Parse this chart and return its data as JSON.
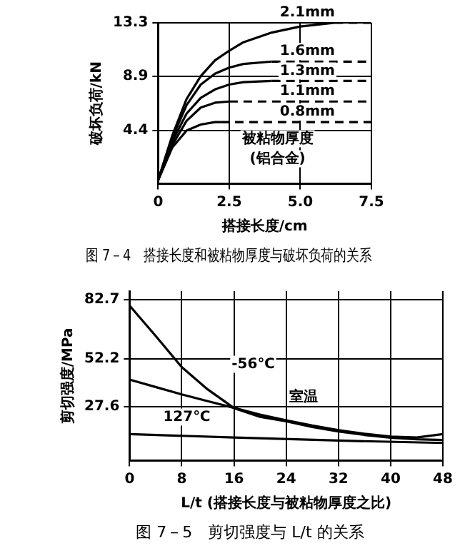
{
  "chart_data": [
    {
      "type": "line",
      "title": "图 7－4　搭接长度和被粘物厚度与破坏负荷的关系",
      "xlabel": "搭接长度/cm",
      "ylabel": "破坏负荷/kN",
      "xlim": [
        0,
        7.5
      ],
      "ylim": [
        0,
        13.3
      ],
      "xticks": [
        0,
        2.5,
        {
          "value": 5,
          "label": "5.0"
        },
        7.5
      ],
      "yticks": [
        4.4,
        8.9,
        13.3
      ],
      "tick_labels": "xy",
      "grid": true,
      "legend": false,
      "marker": "none",
      "series": [
        {
          "color": "#000000",
          "x": [
            0,
            0.5,
            1,
            1.5,
            2,
            2.2
          ],
          "values": [
            0.3,
            3,
            4.4,
            4.9,
            5.1,
            5.1
          ],
          "line_style": "solid"
        },
        {
          "name": "0.8mm",
          "color": "#000000",
          "x": [
            2.2,
            7.5
          ],
          "values": [
            5.1,
            5.1
          ],
          "line_style": "dashed"
        },
        {
          "color": "#000000",
          "x": [
            0,
            0.5,
            1,
            1.5,
            2,
            2.5
          ],
          "values": [
            0.3,
            3.2,
            5.2,
            6.3,
            6.7,
            6.8
          ],
          "line_style": "solid"
        },
        {
          "name": "1.1mm",
          "color": "#000000",
          "x": [
            2.5,
            7.5
          ],
          "values": [
            6.8,
            6.8
          ],
          "line_style": "dashed"
        },
        {
          "color": "#000000",
          "x": [
            0,
            0.5,
            1,
            1.5,
            2,
            2.5,
            3,
            4
          ],
          "values": [
            0.3,
            3.5,
            5.8,
            7.1,
            7.8,
            8.2,
            8.4,
            8.5
          ],
          "line_style": "solid"
        },
        {
          "name": "1.3mm",
          "color": "#000000",
          "x": [
            4,
            7.5
          ],
          "values": [
            8.5,
            8.5
          ],
          "line_style": "dashed"
        },
        {
          "color": "#000000",
          "x": [
            0,
            0.5,
            1,
            1.5,
            2,
            2.5,
            3,
            4
          ],
          "values": [
            0.3,
            3.8,
            6.5,
            8.2,
            9.1,
            9.6,
            9.9,
            10.1
          ],
          "line_style": "solid"
        },
        {
          "name": "1.6mm",
          "color": "#000000",
          "x": [
            4,
            7.5
          ],
          "values": [
            10.1,
            10.1
          ],
          "line_style": "dashed"
        },
        {
          "color": "#000000",
          "x": [
            0,
            0.5,
            1,
            1.5,
            2,
            2.5,
            3,
            4,
            5,
            6.2
          ],
          "values": [
            0.3,
            4,
            7,
            8.9,
            10.2,
            11,
            11.7,
            12.5,
            13,
            13.3
          ],
          "line_style": "solid"
        },
        {
          "name": "2.1mm",
          "color": "#000000",
          "x": [
            6.2,
            7.5
          ],
          "values": [
            13.3,
            13.3
          ],
          "line_style": "dashed"
        }
      ],
      "annotations": [
        "被粘物厚度",
        "(铝合金)"
      ]
    },
    {
      "type": "line",
      "title": "图 7－5　剪切强度与 L/t 的关系",
      "xlabel": "L/t (搭接长度与被粘物厚度之比)",
      "ylabel": "剪切强度/MPa",
      "xlim": [
        0,
        48
      ],
      "ylim": [
        0,
        87
      ],
      "xticks": [
        0,
        8,
        16,
        24,
        32,
        40,
        48
      ],
      "yticks": [
        27.6,
        52.2,
        82.7
      ],
      "grid": true,
      "legend": false,
      "marker": "none",
      "line_style": "solid",
      "series": [
        {
          "name": "-56℃",
          "color": "#000000",
          "x": [
            0,
            4,
            8,
            12,
            16,
            20,
            24,
            28,
            32,
            36,
            40,
            44,
            48
          ],
          "values": [
            79.6,
            64,
            48,
            36.5,
            27,
            22.5,
            20.2,
            17.3,
            15,
            13.2,
            11.8,
            11,
            10.6
          ]
        },
        {
          "name": "室温",
          "color": "#000000",
          "x": [
            0,
            4,
            8,
            12,
            16,
            20,
            24,
            28,
            32,
            36,
            40,
            44,
            48
          ],
          "values": [
            41.6,
            37.8,
            34,
            30.5,
            27.1,
            23.6,
            20.7,
            18,
            15.7,
            13.8,
            12.4,
            11.9,
            13.6
          ]
        },
        {
          "name": "127℃",
          "color": "#000000",
          "x": [
            0,
            16,
            32,
            48
          ],
          "values": [
            13.6,
            11.9,
            10.3,
            9.1
          ]
        }
      ]
    }
  ]
}
